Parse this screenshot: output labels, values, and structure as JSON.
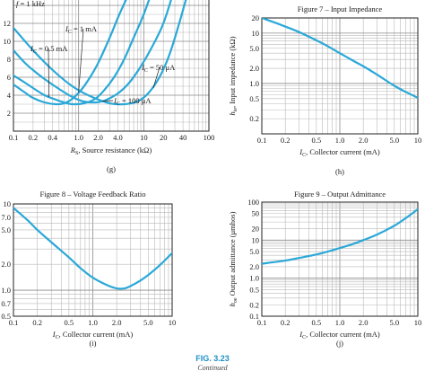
{
  "chart_data": [
    {
      "id": "g",
      "type": "line",
      "title": "",
      "panel_label": "(g)",
      "xlabel": "R_S, Source resistance (kΩ)",
      "x_scale": "log",
      "xlim": [
        0.1,
        100
      ],
      "ylim": [
        0,
        16
      ],
      "x_ticks": [
        "0.1",
        "0.2",
        "0.4",
        "1.0",
        "2.0",
        "4.0",
        "10",
        "20",
        "40",
        "100"
      ],
      "y_ticks": [
        "2",
        "4",
        "6",
        "8",
        "10",
        "12"
      ],
      "header_note": "f = 1 kHz",
      "series": [
        {
          "name": "I_C = 1 mA",
          "x": [
            0.1,
            0.15,
            0.2,
            0.3,
            0.45,
            0.6,
            0.8,
            1.1,
            1.5,
            2,
            3,
            4,
            5.5,
            7
          ],
          "y": [
            5.2,
            4.3,
            3.7,
            3.2,
            3.0,
            3.1,
            3.6,
            4.6,
            6.0,
            7.6,
            10.4,
            12.6,
            14.8,
            16
          ]
        },
        {
          "name": "I_C = 0.5 mA",
          "x": [
            0.1,
            0.15,
            0.2,
            0.3,
            0.45,
            0.6,
            0.8,
            1.2,
            1.8,
            2.5,
            3.5,
            5,
            7,
            10,
            14
          ],
          "y": [
            6.2,
            5.4,
            4.8,
            4.0,
            3.5,
            3.2,
            3.0,
            3.1,
            3.6,
            4.6,
            6.0,
            8.0,
            10.4,
            13.0,
            16
          ]
        },
        {
          "name": "I_C = 100 μA",
          "x": [
            0.1,
            0.15,
            0.2,
            0.3,
            0.5,
            0.8,
            1.2,
            1.8,
            2.5,
            4,
            6,
            9,
            13,
            20,
            30
          ],
          "y": [
            9.0,
            7.6,
            6.8,
            5.8,
            4.7,
            3.8,
            3.3,
            3.2,
            3.4,
            4.2,
            5.4,
            7.2,
            9.2,
            12.0,
            16
          ]
        },
        {
          "name": "I_C = 50 μA",
          "x": [
            0.1,
            0.2,
            0.4,
            0.8,
            1.5,
            3,
            5,
            8,
            12,
            18,
            25,
            35,
            50
          ],
          "y": [
            11.5,
            9.0,
            6.8,
            5.0,
            3.9,
            3.1,
            3.0,
            3.3,
            4.3,
            6.2,
            8.6,
            12.0,
            16
          ]
        }
      ]
    },
    {
      "id": "h",
      "type": "line",
      "title": "Figure 7 – Input Impedance",
      "panel_label": "(h)",
      "xlabel": "I_C, Collector current (mA)",
      "ylabel": "h_ie, Input impedance (kΩ)",
      "x_scale": "log",
      "y_scale": "log",
      "xlim": [
        0.1,
        10
      ],
      "ylim": [
        0.1,
        20
      ],
      "x_ticks": [
        "0.1",
        "0.2",
        "0.5",
        "1.0",
        "2.0",
        "5.0",
        "10"
      ],
      "y_ticks": [
        "20",
        "10",
        "5.0",
        "2.0",
        "1.0",
        "0.5",
        "0.2"
      ],
      "series": [
        {
          "name": "",
          "x": [
            0.1,
            0.15,
            0.2,
            0.3,
            0.5,
            0.7,
            1.0,
            1.5,
            2,
            3,
            5,
            7,
            10
          ],
          "y": [
            20,
            16,
            13.5,
            10.5,
            7.2,
            5.5,
            4.0,
            2.8,
            2.2,
            1.5,
            0.9,
            0.68,
            0.52
          ]
        }
      ]
    },
    {
      "id": "i",
      "type": "line",
      "title": "Figure 8 – Voltage Feedback Ratio",
      "panel_label": "(i)",
      "xlabel": "I_C, Collector current (mA)",
      "x_scale": "log",
      "y_scale": "log",
      "xlim": [
        0.1,
        10
      ],
      "ylim": [
        0.5,
        10
      ],
      "x_ticks": [
        "0.1",
        "0.2",
        "0.5",
        "1.0",
        "2.0",
        "5.0",
        "10"
      ],
      "y_ticks": [
        "10",
        "7.0",
        "5.0",
        "2.0",
        "1.0",
        "0.7",
        "0.5"
      ],
      "series": [
        {
          "name": "",
          "x": [
            0.1,
            0.15,
            0.2,
            0.3,
            0.5,
            0.7,
            1.0,
            1.5,
            2,
            2.5,
            3,
            4,
            5,
            7,
            10
          ],
          "y": [
            9.0,
            6.5,
            5.0,
            3.6,
            2.4,
            1.8,
            1.4,
            1.15,
            1.05,
            1.05,
            1.12,
            1.3,
            1.5,
            1.95,
            2.7
          ]
        }
      ]
    },
    {
      "id": "j",
      "type": "line",
      "title": "Figure 9 – Output Admittance",
      "panel_label": "(j)",
      "xlabel": "I_C, Collector current (mA)",
      "ylabel": "h_oe Output admittance (μmhos)",
      "x_scale": "log",
      "y_scale": "log",
      "xlim": [
        0.1,
        10
      ],
      "ylim": [
        0.1,
        100
      ],
      "x_ticks": [
        "0.1",
        "0.2",
        "0.5",
        "1.0",
        "2.0",
        "5.0",
        "10"
      ],
      "y_ticks": [
        "100",
        "50",
        "20",
        "10",
        "5.0",
        "2.0",
        "1.0",
        "0.5",
        "0.2",
        "0.1"
      ],
      "series": [
        {
          "name": "",
          "x": [
            0.1,
            0.2,
            0.3,
            0.5,
            0.7,
            1.0,
            1.5,
            2,
            3,
            5,
            7,
            10
          ],
          "y": [
            2.4,
            2.9,
            3.4,
            4.2,
            5.0,
            6.2,
            8.0,
            10.0,
            14.0,
            24.0,
            38.0,
            65.0
          ]
        }
      ]
    }
  ],
  "figure": {
    "label": "FIG. 3.23",
    "continued": "Continued"
  }
}
